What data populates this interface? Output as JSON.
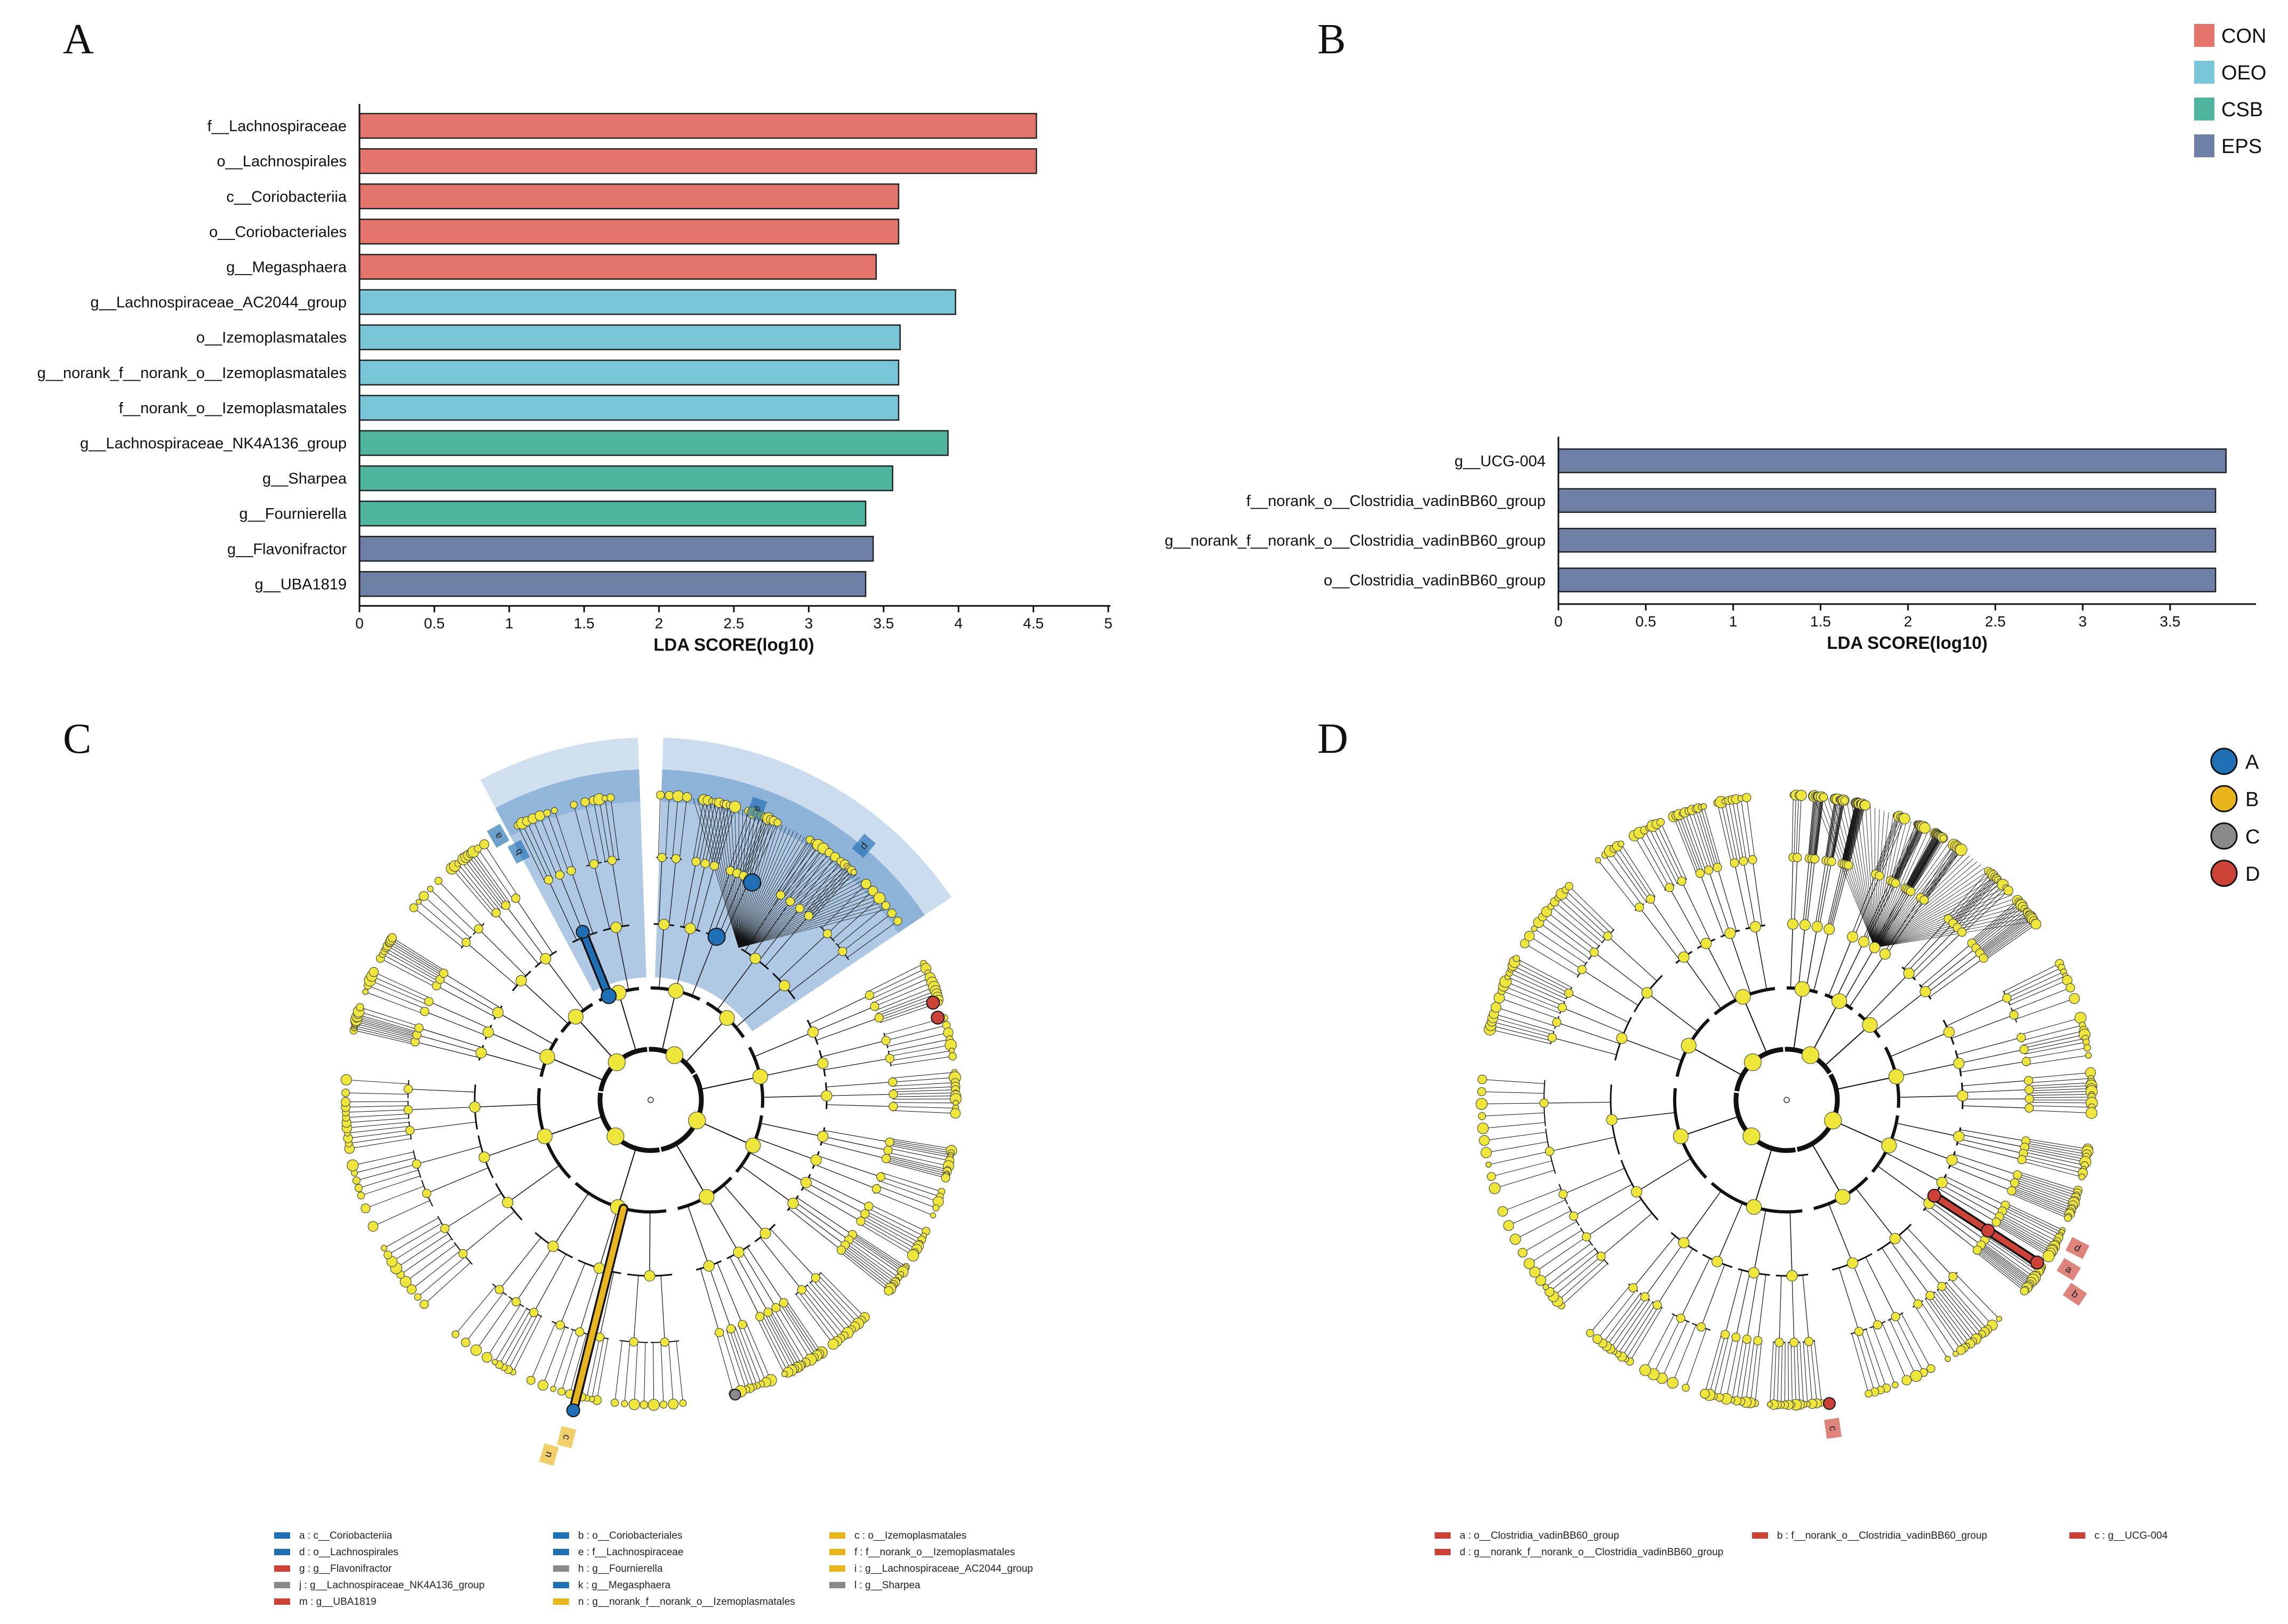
{
  "panels": {
    "A": "A",
    "B": "B",
    "C": "C",
    "D": "D"
  },
  "colors": {
    "CON": "#e5756c",
    "OEO": "#78c6d8",
    "CSB": "#4fb59e",
    "EPS": "#6f80a6",
    "A": "#1f6fb4",
    "B": "#e9b51c",
    "C": "#8a8a8a",
    "D": "#cc4237",
    "node": "#eee63a"
  },
  "group_legend": [
    {
      "label": "CON",
      "color": "#e5756c"
    },
    {
      "label": "OEO",
      "color": "#78c6d8"
    },
    {
      "label": "CSB",
      "color": "#4fb59e"
    },
    {
      "label": "EPS",
      "color": "#6f80a6"
    }
  ],
  "clade_legend": [
    {
      "label": "A",
      "color": "#1f6fb4"
    },
    {
      "label": "B",
      "color": "#e9b51c"
    },
    {
      "label": "C",
      "color": "#8a8a8a"
    },
    {
      "label": "D",
      "color": "#cc4237"
    }
  ],
  "chart_data": [
    {
      "id": "A",
      "type": "bar",
      "orientation": "horizontal",
      "xlabel": "LDA SCORE(log10)",
      "xlim": [
        0,
        5
      ],
      "xticks": [
        "0",
        "0.5",
        "1",
        "1.5",
        "2",
        "2.5",
        "3",
        "3.5",
        "4",
        "4.5",
        "5"
      ],
      "bars": [
        {
          "label": "f__Lachnospiraceae",
          "value": 4.52,
          "group": "CON"
        },
        {
          "label": "o__Lachnospirales",
          "value": 4.52,
          "group": "CON"
        },
        {
          "label": "c__Coriobacteriia",
          "value": 3.6,
          "group": "CON"
        },
        {
          "label": "o__Coriobacteriales",
          "value": 3.6,
          "group": "CON"
        },
        {
          "label": "g__Megasphaera",
          "value": 3.45,
          "group": "CON"
        },
        {
          "label": "g__Lachnospiraceae_AC2044_group",
          "value": 3.98,
          "group": "OEO"
        },
        {
          "label": "o__Izemoplasmatales",
          "value": 3.61,
          "group": "OEO"
        },
        {
          "label": "g__norank_f__norank_o__Izemoplasmatales",
          "value": 3.6,
          "group": "OEO"
        },
        {
          "label": "f__norank_o__Izemoplasmatales",
          "value": 3.6,
          "group": "OEO"
        },
        {
          "label": "g__Lachnospiraceae_NK4A136_group",
          "value": 3.93,
          "group": "CSB"
        },
        {
          "label": "g__Sharpea",
          "value": 3.56,
          "group": "CSB"
        },
        {
          "label": "g__Fournierella",
          "value": 3.38,
          "group": "CSB"
        },
        {
          "label": "g__Flavonifractor",
          "value": 3.43,
          "group": "EPS"
        },
        {
          "label": "g__UBA1819",
          "value": 3.38,
          "group": "EPS"
        }
      ]
    },
    {
      "id": "B",
      "type": "bar",
      "orientation": "horizontal",
      "xlabel": "LDA SCORE(log10)",
      "xlim": [
        0,
        3.9
      ],
      "xticks": [
        "0",
        "0.5",
        "1",
        "1.5",
        "2",
        "2.5",
        "3",
        "3.5"
      ],
      "bars": [
        {
          "label": "g__UCG-004",
          "value": 3.82,
          "group": "EPS"
        },
        {
          "label": "f__norank_o__Clostridia_vadinBB60_group",
          "value": 3.76,
          "group": "EPS"
        },
        {
          "label": "g__norank_f__norank_o__Clostridia_vadinBB60_group",
          "value": 3.76,
          "group": "EPS"
        },
        {
          "label": "o__Clostridia_vadinBB60_group",
          "value": 3.76,
          "group": "EPS"
        }
      ]
    }
  ],
  "cladogram_C": {
    "highlights": [
      "a",
      "b",
      "d",
      "e",
      "c",
      "n"
    ],
    "legend": [
      {
        "text": "a : c__Coriobacteriia",
        "color": "#1f6fb4"
      },
      {
        "text": "b : o__Coriobacteriales",
        "color": "#1f6fb4"
      },
      {
        "text": "c : o__Izemoplasmatales",
        "color": "#e9b51c"
      },
      {
        "text": "d : o__Lachnospirales",
        "color": "#1f6fb4"
      },
      {
        "text": "e : f__Lachnospiraceae",
        "color": "#1f6fb4"
      },
      {
        "text": "f : f__norank_o__Izemoplasmatales",
        "color": "#e9b51c"
      },
      {
        "text": "g : g__Flavonifractor",
        "color": "#cc4237"
      },
      {
        "text": "h : g__Fournierella",
        "color": "#8a8a8a"
      },
      {
        "text": "i : g__Lachnospiraceae_AC2044_group",
        "color": "#e9b51c"
      },
      {
        "text": "j : g__Lachnospiraceae_NK4A136_group",
        "color": "#8a8a8a"
      },
      {
        "text": "k : g__Megasphaera",
        "color": "#1f6fb4"
      },
      {
        "text": "l : g__Sharpea",
        "color": "#8a8a8a"
      },
      {
        "text": "m : g__UBA1819",
        "color": "#cc4237"
      },
      {
        "text": "n : g__norank_f__norank_o__Izemoplasmatales",
        "color": "#e9b51c"
      }
    ]
  },
  "cladogram_D": {
    "highlights": [
      "a",
      "b",
      "d",
      "c"
    ],
    "legend": [
      {
        "text": "a : o__Clostridia_vadinBB60_group",
        "color": "#cc4237"
      },
      {
        "text": "b : f__norank_o__Clostridia_vadinBB60_group",
        "color": "#cc4237"
      },
      {
        "text": "c : g__UCG-004",
        "color": "#cc4237"
      },
      {
        "text": "d : g__norank_f__norank_o__Clostridia_vadinBB60_group",
        "color": "#cc4237"
      }
    ]
  }
}
